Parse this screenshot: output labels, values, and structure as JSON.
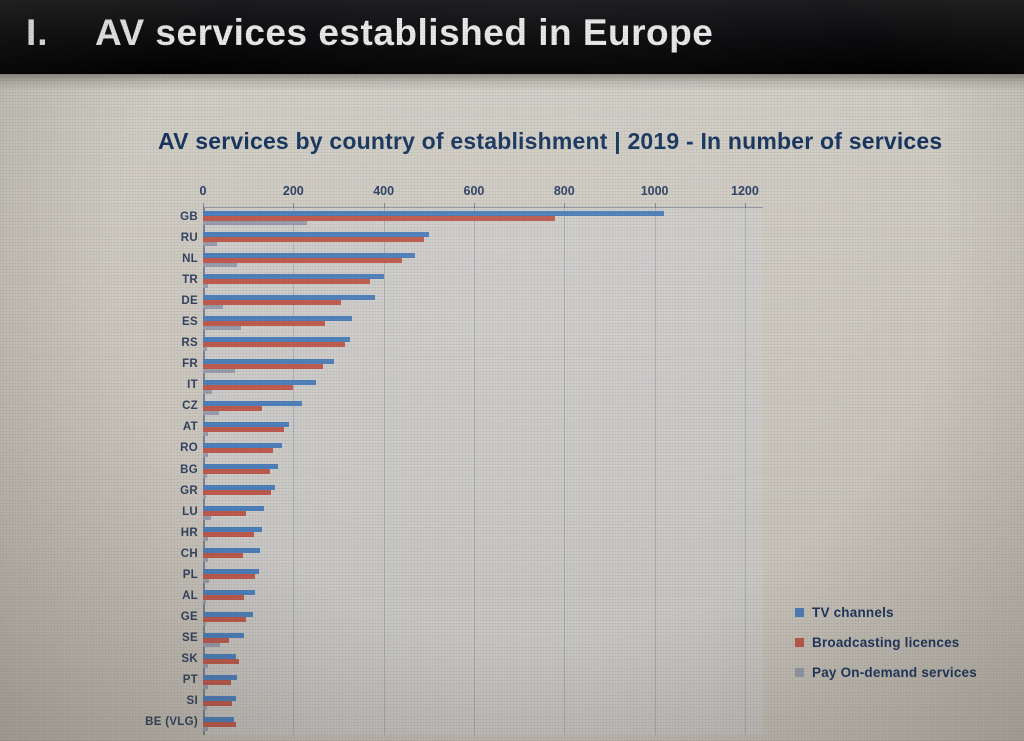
{
  "header": {
    "numeral": "I.",
    "title": "AV services established in Europe"
  },
  "slide": {
    "chart_title": "AV services by country of establishment | 2019 - In number of services"
  },
  "chart_data": {
    "type": "bar",
    "orientation": "horizontal",
    "title": "AV services by country of establishment | 2019 - In number of services",
    "xlabel": "",
    "ylabel": "",
    "xlim": [
      0,
      1240
    ],
    "x_ticks": [
      0,
      200,
      400,
      600,
      800,
      1000,
      1200
    ],
    "grid": true,
    "legend_position": "bottom-right",
    "categories": [
      "GB",
      "RU",
      "NL",
      "TR",
      "DE",
      "ES",
      "RS",
      "FR",
      "IT",
      "CZ",
      "AT",
      "RO",
      "BG",
      "GR",
      "LU",
      "HR",
      "CH",
      "PL",
      "AL",
      "GE",
      "SE",
      "SK",
      "PT",
      "SI",
      "BE (VLG)"
    ],
    "series": [
      {
        "name": "TV channels",
        "color": "#4d7fba",
        "values": [
          1020,
          500,
          470,
          400,
          380,
          330,
          325,
          290,
          250,
          220,
          190,
          175,
          165,
          160,
          136,
          130,
          126,
          124,
          116,
          110,
          90,
          72,
          75,
          72,
          68
        ]
      },
      {
        "name": "Broadcasting licences",
        "color": "#bf5a4d",
        "values": [
          780,
          490,
          440,
          370,
          305,
          270,
          315,
          265,
          200,
          130,
          180,
          155,
          148,
          150,
          95,
          112,
          88,
          115,
          90,
          95,
          58,
          80,
          62,
          65,
          72
        ]
      },
      {
        "name": "Pay On-demand services",
        "color": "#989cab",
        "values": [
          230,
          30,
          75,
          10,
          45,
          85,
          8,
          70,
          20,
          35,
          12,
          10,
          8,
          6,
          18,
          10,
          12,
          14,
          6,
          6,
          38,
          10,
          10,
          8,
          12
        ]
      }
    ]
  },
  "colors": {
    "header_bg": "#0a0a0c",
    "header_text": "#e9e9ea",
    "title_text": "#17355e",
    "axis_text": "#2e3f63",
    "slide_bg": "#cdc9c0"
  }
}
